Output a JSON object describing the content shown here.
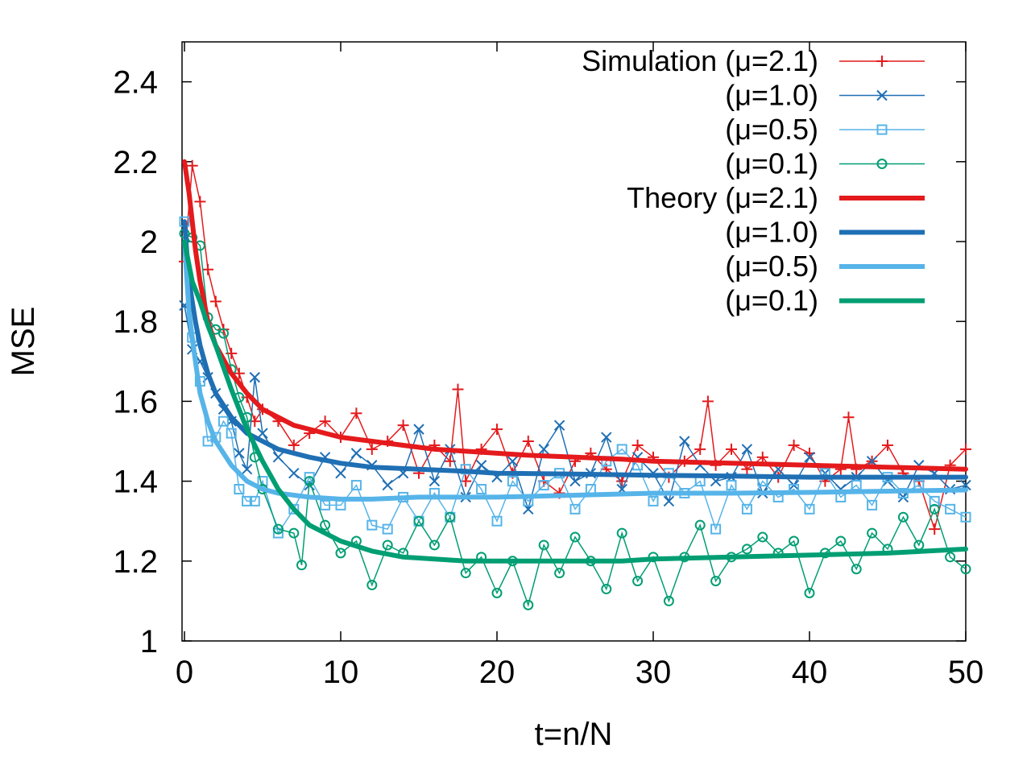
{
  "chart_data": {
    "type": "line",
    "title": "",
    "xlabel": "t=n/N",
    "ylabel": "MSE",
    "xlim": [
      0,
      50
    ],
    "ylim": [
      1,
      2.5
    ],
    "xticks": [
      0,
      10,
      20,
      30,
      40,
      50
    ],
    "xtick_labels": [
      "0",
      "10",
      "20",
      "30",
      "40",
      "50"
    ],
    "yticks": [
      1,
      1.2,
      1.4,
      1.6,
      1.8,
      2,
      2.2,
      2.4
    ],
    "ytick_labels": [
      "1",
      "1.2",
      "1.4",
      "1.6",
      "1.8",
      "2",
      "2.2",
      "2.4"
    ],
    "grid": false,
    "legend_position": "top-right",
    "legend_entries": [
      "Simulation (μ=2.1)",
      "(μ=1.0)",
      "(μ=0.5)",
      "(μ=0.1)",
      "Theory (μ=2.1)",
      "(μ=1.0)",
      "(μ=0.5)",
      "(μ=0.1)"
    ],
    "series": [
      {
        "name": "Simulation (μ=2.1)",
        "kind": "simulation",
        "marker": "plus",
        "color": "#e41a1c",
        "x": [
          0,
          0.5,
          1,
          1.5,
          2,
          2.5,
          3,
          3.5,
          4,
          4.5,
          5,
          6,
          7,
          8,
          9,
          10,
          11,
          12,
          13,
          14,
          15,
          16,
          17,
          17.5,
          18,
          19,
          20,
          21,
          22,
          23,
          24,
          25,
          26,
          27,
          28,
          29,
          30,
          31,
          32,
          33,
          33.5,
          34,
          35,
          36,
          37,
          38,
          39,
          40,
          41,
          42,
          42.5,
          43,
          44,
          45,
          46,
          47,
          48,
          49,
          50
        ],
        "y": [
          1.95,
          2.19,
          2.1,
          1.93,
          1.85,
          1.78,
          1.72,
          1.67,
          1.61,
          1.55,
          1.58,
          1.55,
          1.49,
          1.52,
          1.55,
          1.51,
          1.57,
          1.48,
          1.5,
          1.54,
          1.42,
          1.49,
          1.45,
          1.63,
          1.4,
          1.48,
          1.53,
          1.42,
          1.5,
          1.4,
          1.37,
          1.45,
          1.47,
          1.43,
          1.4,
          1.49,
          1.46,
          1.41,
          1.45,
          1.48,
          1.6,
          1.44,
          1.48,
          1.43,
          1.46,
          1.41,
          1.49,
          1.47,
          1.4,
          1.43,
          1.56,
          1.43,
          1.45,
          1.49,
          1.42,
          1.4,
          1.28,
          1.44,
          1.48
        ]
      },
      {
        "name": "(μ=1.0)",
        "kind": "simulation",
        "marker": "cross",
        "color": "#1f6fb4",
        "x": [
          0,
          0.5,
          1,
          1.5,
          2,
          2.5,
          3,
          3.5,
          4,
          4.5,
          5,
          6,
          7,
          8,
          9,
          10,
          11,
          12,
          13,
          14,
          15,
          16,
          17,
          18,
          19,
          20,
          21,
          22,
          23,
          24,
          25,
          26,
          27,
          28,
          29,
          30,
          31,
          32,
          33,
          34,
          35,
          36,
          37,
          38,
          39,
          40,
          41,
          42,
          43,
          44,
          45,
          46,
          47,
          48,
          49,
          50
        ],
        "y": [
          1.84,
          1.73,
          1.7,
          1.66,
          1.62,
          1.58,
          1.55,
          1.47,
          1.43,
          1.66,
          1.52,
          1.46,
          1.42,
          1.39,
          1.46,
          1.42,
          1.47,
          1.44,
          1.39,
          1.42,
          1.53,
          1.4,
          1.48,
          1.36,
          1.44,
          1.41,
          1.45,
          1.33,
          1.48,
          1.54,
          1.4,
          1.42,
          1.51,
          1.38,
          1.46,
          1.42,
          1.35,
          1.5,
          1.44,
          1.4,
          1.41,
          1.48,
          1.37,
          1.43,
          1.39,
          1.46,
          1.42,
          1.38,
          1.41,
          1.45,
          1.4,
          1.36,
          1.44,
          1.42,
          1.38,
          1.39
        ]
      },
      {
        "name": "(μ=0.5)",
        "kind": "simulation",
        "marker": "square",
        "color": "#56b4e9",
        "x": [
          0,
          0.5,
          1,
          1.5,
          2,
          2.5,
          3,
          3.5,
          4,
          4.5,
          5,
          6,
          7,
          8,
          9,
          10,
          11,
          12,
          13,
          14,
          15,
          16,
          17,
          18,
          19,
          20,
          21,
          22,
          23,
          24,
          25,
          26,
          27,
          28,
          29,
          30,
          31,
          32,
          33,
          34,
          35,
          36,
          37,
          38,
          39,
          40,
          41,
          42,
          43,
          44,
          45,
          46,
          47,
          48,
          49,
          50
        ],
        "y": [
          2.05,
          1.76,
          1.65,
          1.5,
          1.51,
          1.55,
          1.52,
          1.38,
          1.35,
          1.35,
          1.4,
          1.27,
          1.33,
          1.41,
          1.34,
          1.34,
          1.39,
          1.29,
          1.28,
          1.36,
          1.3,
          1.37,
          1.31,
          1.43,
          1.38,
          1.3,
          1.4,
          1.35,
          1.39,
          1.42,
          1.33,
          1.38,
          1.45,
          1.48,
          1.44,
          1.35,
          1.42,
          1.37,
          1.4,
          1.28,
          1.39,
          1.33,
          1.4,
          1.36,
          1.38,
          1.33,
          1.42,
          1.36,
          1.39,
          1.34,
          1.41,
          1.37,
          1.39,
          1.35,
          1.33,
          1.31
        ]
      },
      {
        "name": "(μ=0.1)",
        "kind": "simulation",
        "marker": "circle",
        "color": "#009e73",
        "x": [
          0,
          0.5,
          1,
          1.5,
          2,
          2.5,
          3,
          3.5,
          4,
          4.5,
          5,
          6,
          7,
          7.5,
          8,
          9,
          10,
          11,
          12,
          13,
          14,
          15,
          16,
          17,
          18,
          19,
          20,
          21,
          22,
          23,
          24,
          25,
          26,
          27,
          28,
          29,
          30,
          31,
          32,
          33,
          34,
          35,
          36,
          37,
          38,
          39,
          40,
          41,
          42,
          43,
          44,
          45,
          46,
          47,
          48,
          49,
          50
        ],
        "y": [
          2.02,
          2.01,
          1.99,
          1.81,
          1.78,
          1.77,
          1.68,
          1.61,
          1.56,
          1.46,
          1.38,
          1.28,
          1.27,
          1.19,
          1.4,
          1.29,
          1.22,
          1.25,
          1.14,
          1.24,
          1.22,
          1.3,
          1.24,
          1.31,
          1.17,
          1.21,
          1.12,
          1.2,
          1.09,
          1.24,
          1.17,
          1.26,
          1.2,
          1.13,
          1.27,
          1.15,
          1.21,
          1.1,
          1.21,
          1.29,
          1.15,
          1.21,
          1.23,
          1.26,
          1.22,
          1.25,
          1.12,
          1.22,
          1.25,
          1.18,
          1.27,
          1.23,
          1.31,
          1.24,
          1.33,
          1.21,
          1.18
        ]
      },
      {
        "name": "Theory (μ=2.1)",
        "kind": "theory",
        "color": "#e41a1c",
        "x": [
          0,
          0.3,
          0.7,
          1,
          1.5,
          2,
          3,
          4,
          5,
          6,
          7,
          8,
          10,
          12,
          14,
          16,
          18,
          20,
          22,
          25,
          28,
          30,
          35,
          40,
          45,
          50
        ],
        "y": [
          2.2,
          2.12,
          1.98,
          1.9,
          1.8,
          1.74,
          1.67,
          1.62,
          1.58,
          1.56,
          1.54,
          1.53,
          1.51,
          1.5,
          1.49,
          1.48,
          1.475,
          1.47,
          1.465,
          1.46,
          1.455,
          1.45,
          1.445,
          1.44,
          1.435,
          1.43
        ]
      },
      {
        "name": "(μ=1.0)",
        "kind": "theory",
        "color": "#1f6fb4",
        "x": [
          0,
          0.3,
          0.7,
          1,
          1.5,
          2,
          3,
          4,
          5,
          6,
          8,
          10,
          12,
          15,
          18,
          20,
          25,
          30,
          35,
          40,
          45,
          50
        ],
        "y": [
          2.05,
          1.9,
          1.8,
          1.74,
          1.67,
          1.62,
          1.56,
          1.52,
          1.5,
          1.48,
          1.46,
          1.445,
          1.435,
          1.43,
          1.425,
          1.42,
          1.418,
          1.415,
          1.413,
          1.41,
          1.41,
          1.41
        ]
      },
      {
        "name": "(μ=0.5)",
        "kind": "theory",
        "color": "#56b4e9",
        "x": [
          0,
          0.3,
          0.7,
          1,
          1.5,
          2,
          3,
          4,
          5,
          6,
          8,
          10,
          12,
          15,
          20,
          25,
          30,
          35,
          40,
          45,
          50
        ],
        "y": [
          2.0,
          1.82,
          1.7,
          1.62,
          1.55,
          1.5,
          1.44,
          1.4,
          1.38,
          1.37,
          1.36,
          1.355,
          1.355,
          1.36,
          1.36,
          1.365,
          1.37,
          1.37,
          1.372,
          1.375,
          1.378
        ]
      },
      {
        "name": "(μ=0.1)",
        "kind": "theory",
        "color": "#009e73",
        "x": [
          0,
          0.5,
          1,
          1.5,
          2,
          3,
          4,
          5,
          6,
          7,
          8,
          10,
          12,
          14,
          16,
          18,
          20,
          22,
          25,
          28,
          30,
          35,
          40,
          45,
          50
        ],
        "y": [
          2.0,
          1.9,
          1.85,
          1.79,
          1.74,
          1.63,
          1.53,
          1.45,
          1.38,
          1.33,
          1.29,
          1.25,
          1.225,
          1.21,
          1.205,
          1.2,
          1.2,
          1.2,
          1.2,
          1.2,
          1.205,
          1.21,
          1.215,
          1.22,
          1.23
        ]
      }
    ]
  }
}
